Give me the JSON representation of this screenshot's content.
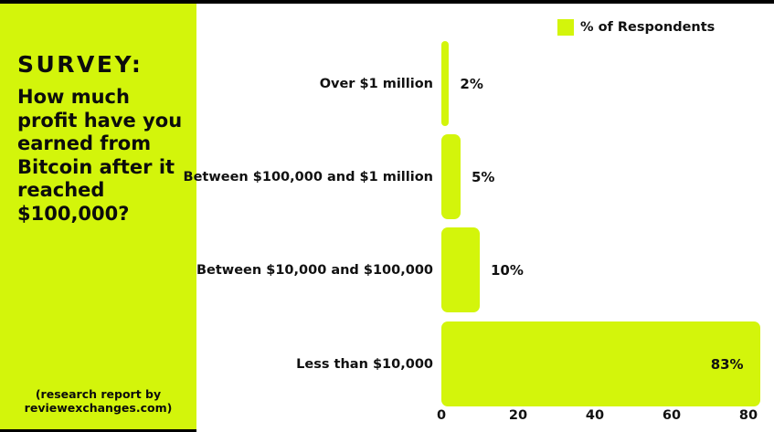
{
  "colors": {
    "accent": "#d3f50b",
    "frame": "#000000",
    "text": "#111111",
    "chart_background": "#ffffff"
  },
  "panel": {
    "title_strong": "SURVEY",
    "title_colon": ":",
    "question": "How much profit have you earned from Bitcoin after it reached $100,000?",
    "question_lines": [
      "How much",
      "profit have you",
      "earned from",
      "Bitcoin after it",
      "reached",
      "$100,000?"
    ],
    "footer_line1": "(research report by",
    "footer_line2": "reviewexchanges.com)"
  },
  "legend": {
    "label": "% of Respondents"
  },
  "chart_data": {
    "type": "bar",
    "orientation": "horizontal",
    "title": "",
    "xlabel": "",
    "ylabel": "",
    "categories": [
      "Over $1 million",
      "Between $100,000 and $1 million",
      "Between $10,000 and $100,000",
      "Less than $10,000"
    ],
    "series": [
      {
        "name": "% of Respondents",
        "values": [
          2,
          5,
          10,
          83
        ]
      }
    ],
    "value_labels": [
      "2%",
      "5%",
      "10%",
      "83%"
    ],
    "x_ticks": [
      0,
      20,
      40,
      60,
      80
    ],
    "xlim": [
      0,
      86
    ],
    "grid": false,
    "legend_position": "top-right",
    "bar_color": "#d3f50b"
  }
}
